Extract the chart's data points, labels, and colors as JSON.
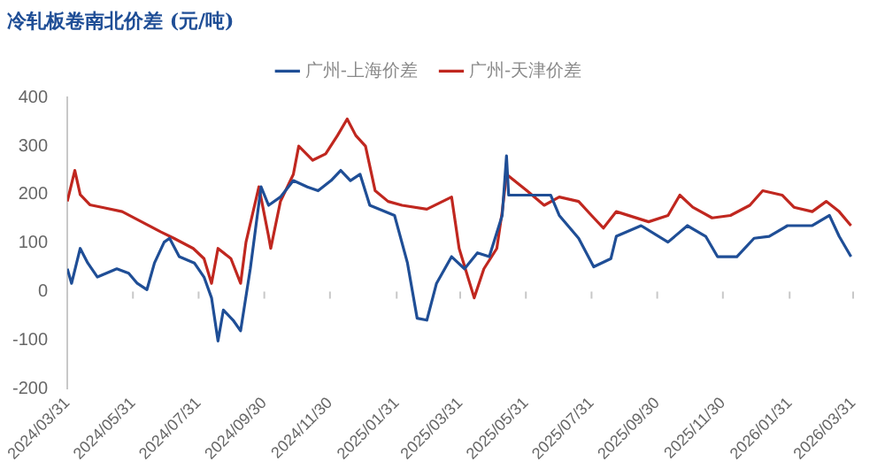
{
  "chart_data": {
    "type": "line",
    "title": "冷轧板卷南北价差 (元/吨)",
    "legend": "top",
    "grid": false,
    "marker": "none",
    "line_style": "solid",
    "ylim": [
      -200,
      400
    ],
    "yticks": [
      -200,
      -100,
      0,
      100,
      200,
      300,
      400
    ],
    "xlim": [
      "2024-03-31",
      "2026-03-31"
    ],
    "xticks": [
      {
        "value": "2024-03-31",
        "label": "2024/03/31"
      },
      {
        "value": "2024-05-31",
        "label": "2024/05/31"
      },
      {
        "value": "2024-07-31",
        "label": "2024/07/31"
      },
      {
        "value": "2024-09-30",
        "label": "2024/09/30"
      },
      {
        "value": "2024-11-30",
        "label": "2024/11/30"
      },
      {
        "value": "2025-01-31",
        "label": "2025/01/31"
      },
      {
        "value": "2025-03-31",
        "label": "2025/03/31"
      },
      {
        "value": "2025-05-31",
        "label": "2025/05/31"
      },
      {
        "value": "2025-07-31",
        "label": "2025/07/31"
      },
      {
        "value": "2025-09-30",
        "label": "2025/09/30"
      },
      {
        "value": "2025-11-30",
        "label": "2025/11/30"
      },
      {
        "value": "2026-01-31",
        "label": "2026/01/31"
      },
      {
        "value": "2026-03-31",
        "label": "2026/03/31"
      }
    ],
    "series": [
      {
        "name": "广州-上海价差",
        "color": "#1f4e96",
        "x": [
          "2024-03-31",
          "2024-04-04",
          "2024-04-12",
          "2024-04-19",
          "2024-04-28",
          "2024-05-16",
          "2024-05-27",
          "2024-06-04",
          "2024-06-13",
          "2024-06-20",
          "2024-06-29",
          "2024-07-04",
          "2024-07-13",
          "2024-07-27",
          "2024-08-05",
          "2024-08-12",
          "2024-08-18",
          "2024-08-23",
          "2024-09-01",
          "2024-09-08",
          "2024-09-17",
          "2024-09-27",
          "2024-10-04",
          "2024-10-15",
          "2024-10-27",
          "2024-11-09",
          "2024-11-19",
          "2024-12-01",
          "2024-12-10",
          "2024-12-19",
          "2024-12-28",
          "2025-01-06",
          "2025-01-29",
          "2025-02-10",
          "2025-02-19",
          "2025-02-28",
          "2025-03-09",
          "2025-03-23",
          "2025-04-04",
          "2025-04-16",
          "2025-04-27",
          "2025-05-09",
          "2025-05-13",
          "2025-05-15",
          "2025-06-01",
          "2025-06-23",
          "2025-07-01",
          "2025-07-19",
          "2025-08-02",
          "2025-08-18",
          "2025-08-23",
          "2025-09-15",
          "2025-10-10",
          "2025-10-28",
          "2025-11-14",
          "2025-11-25",
          "2025-12-13",
          "2025-12-29",
          "2026-01-12",
          "2026-01-29",
          "2026-02-21",
          "2026-03-09",
          "2026-03-18",
          "2026-03-29"
        ],
        "values": [
          47,
          17,
          89,
          59,
          30,
          47,
          38,
          17,
          4,
          59,
          102,
          110,
          72,
          59,
          30,
          -13,
          -102,
          -38,
          -59,
          -81,
          47,
          216,
          178,
          195,
          229,
          216,
          208,
          229,
          250,
          229,
          242,
          178,
          157,
          59,
          -55,
          -59,
          17,
          72,
          47,
          80,
          72,
          157,
          280,
          199,
          199,
          199,
          157,
          110,
          51,
          68,
          114,
          136,
          102,
          136,
          114,
          72,
          72,
          110,
          114,
          136,
          136,
          157,
          114,
          72
        ]
      },
      {
        "name": "广州-天津价差",
        "color": "#c0271f",
        "x": [
          "2024-03-31",
          "2024-04-07",
          "2024-04-12",
          "2024-04-21",
          "2024-05-04",
          "2024-05-21",
          "2024-06-08",
          "2024-06-26",
          "2024-07-08",
          "2024-07-26",
          "2024-08-05",
          "2024-08-12",
          "2024-08-18",
          "2024-08-30",
          "2024-09-08",
          "2024-09-13",
          "2024-09-25",
          "2024-10-04",
          "2024-10-06",
          "2024-10-15",
          "2024-10-27",
          "2024-11-01",
          "2024-11-14",
          "2024-11-26",
          "2024-12-07",
          "2024-12-16",
          "2024-12-24",
          "2025-01-02",
          "2025-01-11",
          "2025-01-23",
          "2025-02-05",
          "2025-02-28",
          "2025-03-23",
          "2025-03-30",
          "2025-04-13",
          "2025-04-22",
          "2025-05-04",
          "2025-05-09",
          "2025-05-13",
          "2025-06-01",
          "2025-06-17",
          "2025-07-01",
          "2025-07-19",
          "2025-07-31",
          "2025-08-11",
          "2025-08-23",
          "2025-09-22",
          "2025-10-10",
          "2025-10-21",
          "2025-11-02",
          "2025-11-20",
          "2025-12-07",
          "2025-12-25",
          "2026-01-06",
          "2026-01-24",
          "2026-02-04",
          "2026-02-21",
          "2026-03-06",
          "2026-03-18",
          "2026-03-29"
        ],
        "values": [
          186,
          250,
          200,
          179,
          173,
          165,
          144,
          123,
          110,
          89,
          68,
          17,
          89,
          68,
          17,
          102,
          216,
          114,
          89,
          186,
          242,
          300,
          271,
          284,
          322,
          356,
          322,
          300,
          208,
          186,
          178,
          170,
          195,
          89,
          -13,
          47,
          89,
          165,
          242,
          208,
          178,
          195,
          186,
          157,
          131,
          165,
          144,
          157,
          199,
          174,
          152,
          157,
          178,
          208,
          199,
          174,
          165,
          186,
          165,
          136
        ]
      }
    ]
  }
}
